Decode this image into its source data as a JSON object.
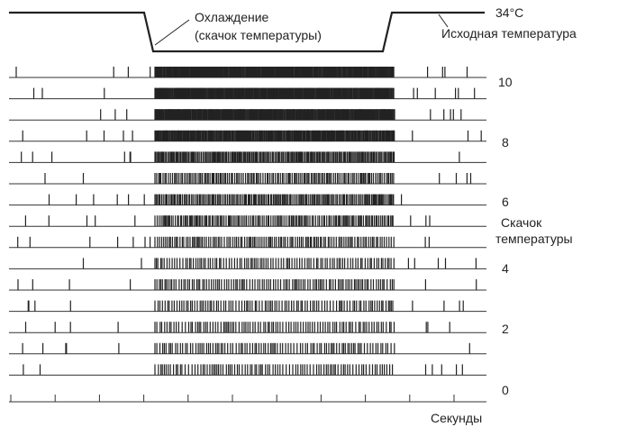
{
  "temperature_trace": {
    "top_label": "34°C",
    "cooling_label_line1": "Охлаждение",
    "cooling_label_line2": "(скачок  температуры)",
    "baseline_label": "Исходная температура"
  },
  "rows": [
    {
      "density": 8,
      "burst": 0.3
    },
    {
      "density": 9,
      "burst": 0.3
    },
    {
      "density": 8,
      "burst": 0.3
    },
    {
      "density": 8,
      "burst": 0.35
    },
    {
      "density": 7,
      "burst": 0.5
    },
    {
      "density": 6,
      "burst": 0.7
    },
    {
      "density": 7,
      "burst": 0.6
    },
    {
      "density": 8,
      "burst": 0.7
    },
    {
      "density": 9,
      "burst": 0.85
    },
    {
      "density": 7,
      "burst": 0.95
    },
    {
      "density": 6,
      "burst": 1.0
    },
    {
      "density": 8,
      "burst": 1.0
    },
    {
      "density": 7,
      "burst": 1.05
    },
    {
      "density": 6,
      "burst": 1.05
    },
    {
      "density": 7,
      "burst": 1.1
    }
  ],
  "step_numbers": [
    "10",
    "8",
    "6",
    "4",
    "2",
    "0"
  ],
  "step_label_line1": "Скачок",
  "step_label_line2": "температуры",
  "time_axis_label": "Секунды"
}
